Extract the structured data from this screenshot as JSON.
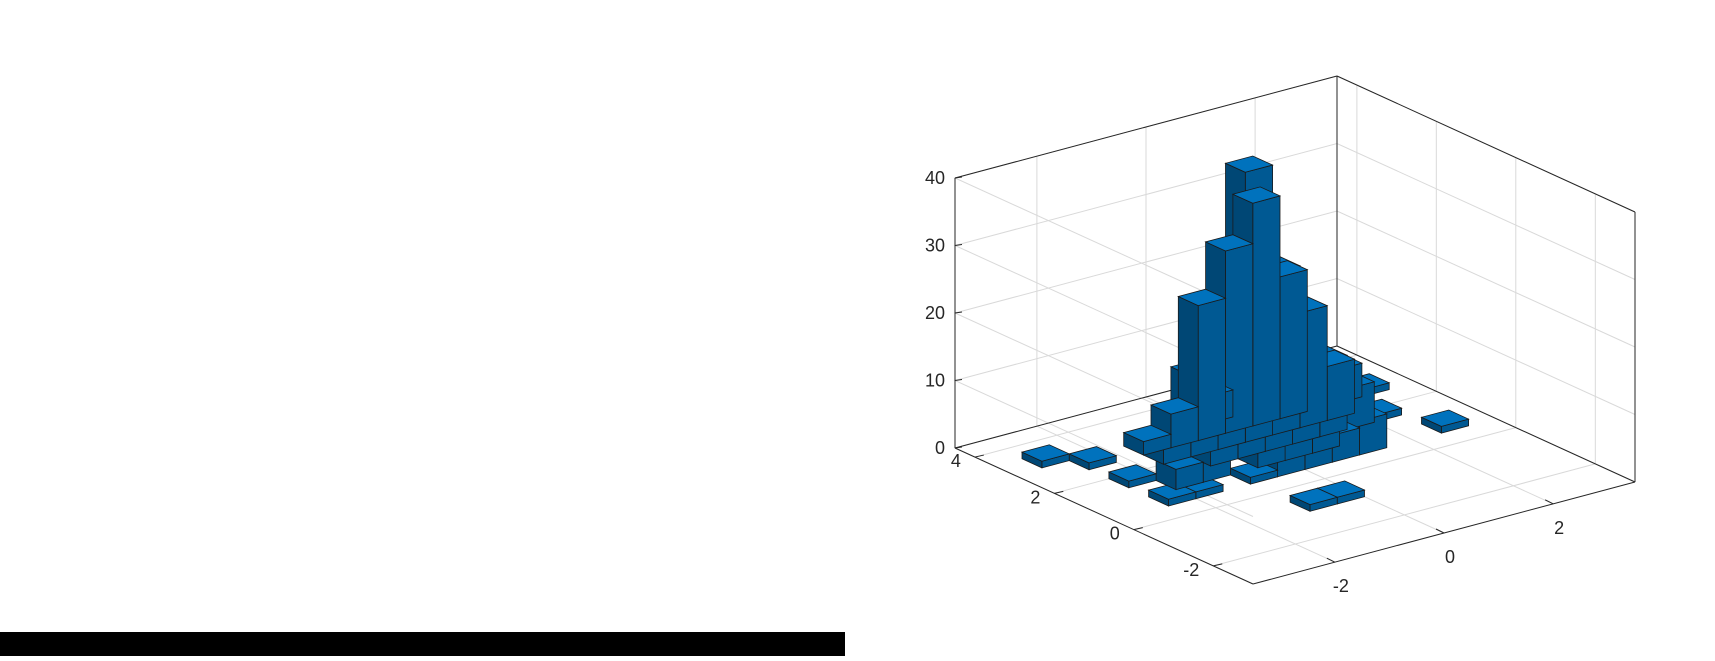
{
  "chart_data": {
    "type": "histogram3d",
    "title": "",
    "xlabel": "",
    "ylabel": "",
    "zlabel": "",
    "grid": true,
    "bin_width": 0.5,
    "x_ticks": [
      "-2",
      "0",
      "2"
    ],
    "y_ticks": [
      "-2",
      "0",
      "2",
      "4"
    ],
    "z_ticks": [
      "0",
      "10",
      "20",
      "30",
      "40"
    ],
    "xlim": [
      -3.5,
      3.5
    ],
    "ylim": [
      -3,
      4.5
    ],
    "zlim": [
      0,
      40
    ],
    "bar_color": "#0072BD",
    "bins": [
      {
        "x": -0.5,
        "y": -1.0,
        "count": 1
      },
      {
        "x": -1.0,
        "y": -1.0,
        "count": 1
      },
      {
        "x": -2.5,
        "y": 0.5,
        "count": 1
      },
      {
        "x": -2.0,
        "y": 0.5,
        "count": 1
      },
      {
        "x": -2.0,
        "y": 1.0,
        "count": 3
      },
      {
        "x": -1.5,
        "y": 1.0,
        "count": 5
      },
      {
        "x": -0.5,
        "y": 0.5,
        "count": 7
      },
      {
        "x": 0.0,
        "y": 0.5,
        "count": 3
      },
      {
        "x": -1.0,
        "y": 0.5,
        "count": 1
      },
      {
        "x": -2.5,
        "y": 1.5,
        "count": 1
      },
      {
        "x": -2.5,
        "y": 2.5,
        "count": 1
      },
      {
        "x": -1.5,
        "y": 2.0,
        "count": 3
      },
      {
        "x": -1.5,
        "y": 2.5,
        "count": 2
      },
      {
        "x": -1.0,
        "y": 2.5,
        "count": 5
      },
      {
        "x": 0.0,
        "y": 3.0,
        "count": 4
      },
      {
        "x": -3.0,
        "y": 3.0,
        "count": 1
      },
      {
        "x": 2.5,
        "y": 2.5,
        "count": 1
      },
      {
        "x": 2.0,
        "y": 1.5,
        "count": 1
      },
      {
        "x": 2.5,
        "y": 0.5,
        "count": 1
      },
      {
        "x": 2.0,
        "y": 2.5,
        "count": 5
      },
      {
        "x": 1.5,
        "y": 1.5,
        "count": 6
      },
      {
        "x": 1.0,
        "y": 0.5,
        "count": 5
      },
      {
        "x": 0.5,
        "y": 0.5,
        "count": 4
      },
      {
        "x": 0.5,
        "y": 1.0,
        "count": 6
      },
      {
        "x": 1.0,
        "y": 1.5,
        "count": 11
      },
      {
        "x": 1.5,
        "y": 2.0,
        "count": 8
      },
      {
        "x": -1.0,
        "y": 1.5,
        "count": 8
      },
      {
        "x": -0.5,
        "y": 1.0,
        "count": 7
      },
      {
        "x": -1.0,
        "y": 2.0,
        "count": 12
      },
      {
        "x": -0.5,
        "y": 1.5,
        "count": 12
      },
      {
        "x": 0.0,
        "y": 1.0,
        "count": 12
      },
      {
        "x": 0.5,
        "y": 1.5,
        "count": 15
      },
      {
        "x": 1.0,
        "y": 2.0,
        "count": 17
      },
      {
        "x": -0.5,
        "y": 2.0,
        "count": 19
      },
      {
        "x": 0.0,
        "y": 1.5,
        "count": 23
      },
      {
        "x": 0.5,
        "y": 2.0,
        "count": 24
      },
      {
        "x": 1.0,
        "y": 2.5,
        "count": 21
      },
      {
        "x": -0.5,
        "y": 2.5,
        "count": 20
      },
      {
        "x": 0.0,
        "y": 2.0,
        "count": 40
      },
      {
        "x": 0.5,
        "y": 2.5,
        "count": 33
      },
      {
        "x": 0.0,
        "y": 2.5,
        "count": 27
      }
    ]
  }
}
